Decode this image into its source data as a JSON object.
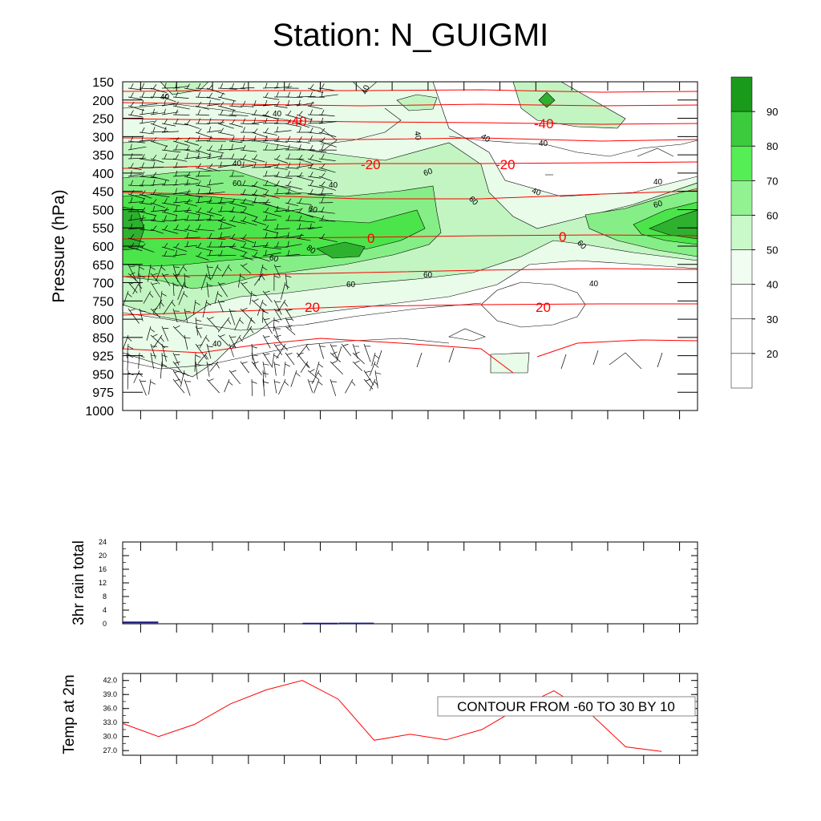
{
  "title": "Station: N_GUIGMI",
  "chart_data": [
    {
      "type": "heatmap",
      "title": "Station: N_GUIGMI",
      "ylabel": "Pressure (hPa)",
      "y_tick_labels": [
        "150",
        "200",
        "250",
        "300",
        "350",
        "400",
        "450",
        "500",
        "550",
        "600",
        "650",
        "700",
        "750",
        "800",
        "850",
        "925",
        "950",
        "975",
        "1000"
      ],
      "colorbar": {
        "levels": [
          20,
          30,
          40,
          50,
          60,
          70,
          80,
          90
        ],
        "labels": [
          "20",
          "30",
          "40",
          "50",
          "60",
          "70",
          "80",
          "90"
        ],
        "colors": [
          "#ffffff",
          "#ffffff",
          "#ffffff",
          "#f1fdf1",
          "#c9f9c9",
          "#92f292",
          "#55ee55",
          "#3ccb3c",
          "#1a9a1a"
        ]
      },
      "humidity_bands": [
        {
          "level": 50,
          "color": "#e9fbe9"
        },
        {
          "level": 60,
          "color": "#c2f5c2"
        },
        {
          "level": 70,
          "color": "#86ee86"
        },
        {
          "level": 80,
          "color": "#4be44b"
        },
        {
          "level": 90,
          "color": "#2eb12e"
        }
      ],
      "humidity_labels": [
        "40",
        "40",
        "40",
        "40",
        "40",
        "40",
        "40",
        "40",
        "40",
        "40",
        "40",
        "60",
        "60",
        "60",
        "60",
        "60",
        "60",
        "60",
        "60",
        "60",
        "80",
        "40"
      ],
      "temperature_contours": {
        "color": "#ff0000",
        "labels": [
          "-40",
          "-40",
          "-20",
          "-20",
          "0",
          "0",
          "20",
          "20"
        ]
      },
      "has_wind_barbs": true
    },
    {
      "type": "bar",
      "ylabel": "3hr rain total",
      "ylim": [
        0,
        24
      ],
      "y_ticks": [
        "0",
        "4",
        "8",
        "12",
        "16",
        "20",
        "24"
      ],
      "values": [
        0.4,
        0.0,
        0.0,
        0.0,
        0.0,
        0.05,
        0.1,
        0.0,
        0.0,
        0.0,
        0.0,
        0.0,
        0.0,
        0.0,
        0.0,
        0.0
      ]
    },
    {
      "type": "line",
      "ylabel": "Temp at 2m",
      "ylim": [
        26.0,
        43.5
      ],
      "y_ticks": [
        "27.0",
        "30.0",
        "33.0",
        "36.0",
        "39.0",
        "42.0"
      ],
      "values": [
        32.8,
        30.0,
        32.6,
        37.0,
        40.0,
        42.0,
        38.0,
        29.2,
        30.5,
        29.3,
        31.5,
        36.0,
        39.8,
        35.0,
        27.8,
        26.8
      ],
      "annotation": "CONTOUR FROM -60 TO 30 BY 10",
      "line_color": "#ff0000"
    }
  ]
}
